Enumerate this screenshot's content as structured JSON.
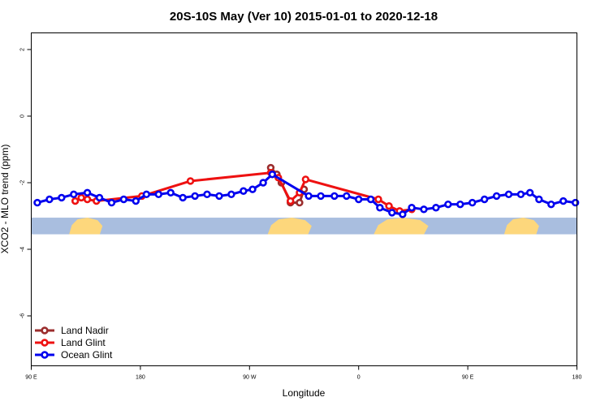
{
  "chart_data": {
    "type": "line",
    "title": "20S-10S May (Ver 10)   2015-01-01 to 2020-12-18",
    "xlabel": "Longitude",
    "ylabel": "XCO2 - MLO trend (ppm)",
    "xlim": [
      0,
      360
    ],
    "ylim": [
      -7.5,
      2.5
    ],
    "x_ticks": [
      {
        "value": 0,
        "label": "90 E"
      },
      {
        "value": 72,
        "label": "180"
      },
      {
        "value": 144,
        "label": "90 W"
      },
      {
        "value": 216,
        "label": "0"
      },
      {
        "value": 288,
        "label": "90 E"
      },
      {
        "value": 360,
        "label": "180"
      }
    ],
    "y_ticks": [
      2,
      0,
      -2,
      -4,
      -6
    ],
    "legend_position": "bottom-left",
    "land_band": {
      "y_range": [
        -3.55,
        -3.05
      ],
      "ocean_color": "#a9bedf",
      "land_color": "#fdd77c",
      "land_segments": [
        [
          25,
          47
        ],
        [
          156,
          185
        ],
        [
          226,
          262
        ],
        [
          312,
          335
        ]
      ]
    },
    "series": [
      {
        "name": "Land Nadir",
        "color": "#9b2d2d",
        "x": [
          158,
          162,
          165,
          171,
          177,
          180
        ],
        "y": [
          -1.55,
          -1.75,
          -2.0,
          -2.6,
          -2.6,
          -2.2
        ]
      },
      {
        "name": "Land Glint",
        "color": "#ee1111",
        "x": [
          29,
          33,
          37,
          43,
          73,
          105,
          158,
          163,
          171,
          177,
          181,
          229,
          236,
          243,
          251
        ],
        "y": [
          -2.55,
          -2.45,
          -2.5,
          -2.55,
          -2.4,
          -1.95,
          -1.7,
          -1.85,
          -2.55,
          -2.3,
          -1.9,
          -2.5,
          -2.7,
          -2.85,
          -2.8
        ]
      },
      {
        "name": "Ocean Glint",
        "color": "#0000ee",
        "x": [
          4,
          12,
          20,
          28,
          37,
          45,
          53,
          61,
          69,
          76,
          84,
          92,
          100,
          108,
          116,
          124,
          132,
          140,
          146,
          153,
          159,
          183,
          191,
          200,
          208,
          216,
          224,
          230,
          238,
          245,
          251,
          259,
          267,
          275,
          283,
          291,
          299,
          307,
          315,
          323,
          329,
          335,
          343,
          351,
          359
        ],
        "y": [
          -2.6,
          -2.5,
          -2.45,
          -2.35,
          -2.3,
          -2.45,
          -2.6,
          -2.5,
          -2.55,
          -2.35,
          -2.35,
          -2.3,
          -2.45,
          -2.4,
          -2.35,
          -2.4,
          -2.35,
          -2.25,
          -2.2,
          -2.0,
          -1.75,
          -2.4,
          -2.4,
          -2.4,
          -2.4,
          -2.5,
          -2.5,
          -2.75,
          -2.9,
          -2.95,
          -2.75,
          -2.8,
          -2.75,
          -2.65,
          -2.65,
          -2.6,
          -2.5,
          -2.4,
          -2.35,
          -2.35,
          -2.3,
          -2.5,
          -2.65,
          -2.55,
          -2.6
        ]
      }
    ]
  }
}
